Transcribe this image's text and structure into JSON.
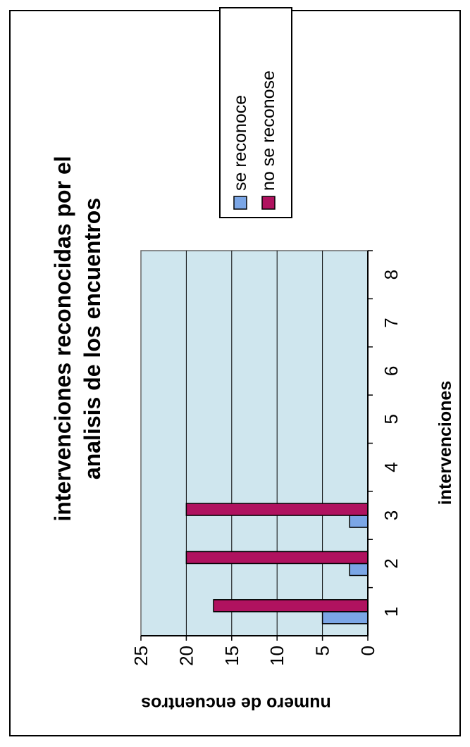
{
  "chart_data": {
    "type": "bar",
    "orientation": "vertical",
    "title_lines": [
      "intervenciones reconocidas por el",
      "analisis de los encuentros"
    ],
    "xlabel": "intervenciones",
    "ylabel": "numero de encuentros",
    "categories": [
      "1",
      "2",
      "3",
      "4",
      "5",
      "6",
      "7",
      "8"
    ],
    "ylim": [
      0,
      25
    ],
    "yticks": [
      "0",
      "5",
      "10",
      "15",
      "20",
      "25"
    ],
    "grid": true,
    "legend_position": "right",
    "plot_background": "#cfe6ee",
    "series": [
      {
        "name": "se reconoce",
        "color": "#7ba6e6",
        "values": [
          5,
          2,
          2,
          0,
          0,
          0,
          0,
          0
        ]
      },
      {
        "name": "no se reconose",
        "color": "#b0125f",
        "values": [
          17,
          20,
          20,
          0,
          0,
          0,
          0,
          0
        ]
      }
    ]
  }
}
